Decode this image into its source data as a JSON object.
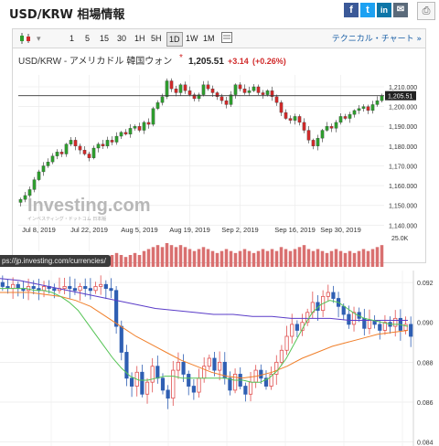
{
  "header": {
    "title": "USD/KRW 相場情報",
    "share": [
      "f",
      "t",
      "in",
      "✉"
    ],
    "print_icon": "printer-icon"
  },
  "toolbar": {
    "intervals": [
      "1",
      "5",
      "15",
      "30",
      "1H",
      "5H",
      "1D",
      "1W",
      "1M"
    ],
    "active": "1D",
    "tech_label": "テクニカル・チャート »"
  },
  "price_header": {
    "pair": "USD/KRW - アメリカドル 韓国ウォン",
    "asterisk": "*",
    "price": "1,205.51",
    "change": "+3.14",
    "change_pct": "(+0.26%)"
  },
  "watermark": {
    "brand": "Investing.com",
    "sub": "インベスティング・ドットコム 日本版"
  },
  "url_overlay": "ps://jp.investing.com/currencies/",
  "colors": {
    "up": "#2e9e2e",
    "down": "#d12a2a",
    "volume": "#d97070",
    "candle2_up": "#e05050",
    "candle2_down": "#2f5fb3",
    "ma_short": "#55c455",
    "ma_mid": "#f07f2a",
    "ma_long": "#5a3cc8"
  },
  "chart_data": [
    {
      "type": "candlestick",
      "title": "USD/KRW - アメリカドル 韓国ウォン",
      "x_ticks": [
        "Jul 8, 2019",
        "Jul 22, 2019",
        "Aug 5, 2019",
        "Aug 19, 2019",
        "Sep 2, 2019",
        "Sep 16, 2019",
        "Sep 30, 2019"
      ],
      "y_ticks": [
        1140,
        1150,
        1160,
        1170,
        1180,
        1190,
        1200,
        1210
      ],
      "ylim": [
        1136,
        1216
      ],
      "last_price": 1205.51,
      "volume_label": "25.0K",
      "closes": [
        1153,
        1155,
        1158,
        1163,
        1167,
        1170,
        1172,
        1175,
        1177,
        1176,
        1181,
        1183,
        1180,
        1178,
        1176,
        1174,
        1179,
        1181,
        1180,
        1183,
        1182,
        1185,
        1187,
        1186,
        1189,
        1190,
        1188,
        1192,
        1191,
        1199,
        1202,
        1205,
        1213,
        1209,
        1207,
        1211,
        1208,
        1206,
        1204,
        1206,
        1211,
        1209,
        1207,
        1205,
        1203,
        1201,
        1206,
        1211,
        1209,
        1207,
        1208,
        1210,
        1207,
        1206,
        1208,
        1205,
        1202,
        1197,
        1194,
        1193,
        1195,
        1192,
        1188,
        1183,
        1180,
        1184,
        1188,
        1190,
        1189,
        1192,
        1195,
        1194,
        1196,
        1198,
        1199,
        1200,
        1198,
        1201,
        1203,
        1205.51
      ],
      "volume": [
        3,
        4,
        5,
        4,
        6,
        5,
        5,
        6,
        5,
        4,
        6,
        5,
        5,
        4,
        6,
        5,
        6,
        5,
        4,
        5,
        6,
        7,
        6,
        5,
        6,
        7,
        6,
        8,
        9,
        10,
        11,
        10,
        12,
        11,
        10,
        11,
        10,
        9,
        8,
        9,
        10,
        9,
        8,
        7,
        8,
        9,
        8,
        7,
        8,
        9,
        8,
        7,
        8,
        9,
        8,
        9,
        8,
        10,
        9,
        8,
        9,
        10,
        11,
        9,
        8,
        9,
        8,
        7,
        8,
        9,
        8,
        7,
        8,
        7,
        8,
        9,
        8,
        9,
        10,
        11
      ]
    },
    {
      "type": "candlestick",
      "y_ticks": [
        0.084,
        0.086,
        0.088,
        0.09,
        0.092
      ],
      "ylim": [
        0.0838,
        0.0926
      ],
      "closes": [
        0.0918,
        0.0917,
        0.0919,
        0.0917,
        0.0916,
        0.0918,
        0.0917,
        0.0916,
        0.0918,
        0.0917,
        0.0916,
        0.0917,
        0.0918,
        0.0917,
        0.0916,
        0.0918,
        0.0917,
        0.0916,
        0.0918,
        0.0919,
        0.0917,
        0.0916,
        0.0898,
        0.0885,
        0.0872,
        0.0868,
        0.0875,
        0.0864,
        0.087,
        0.0878,
        0.0872,
        0.0866,
        0.0862,
        0.0876,
        0.088,
        0.0874,
        0.0868,
        0.0865,
        0.0872,
        0.0878,
        0.0882,
        0.0876,
        0.088,
        0.0872,
        0.0866,
        0.0874,
        0.0868,
        0.0864,
        0.087,
        0.0876,
        0.0872,
        0.0868,
        0.0874,
        0.088,
        0.0886,
        0.0893,
        0.0899,
        0.0896,
        0.09,
        0.0905,
        0.091,
        0.0906,
        0.0913,
        0.0915,
        0.0912,
        0.0908,
        0.0904,
        0.0899,
        0.0905,
        0.0902,
        0.0897,
        0.0901,
        0.0899,
        0.0896,
        0.09,
        0.0898,
        0.0902,
        0.0896,
        0.0899,
        0.0893
      ],
      "ma_short": [
        0.0917,
        0.0917,
        0.0917,
        0.0917,
        0.0916,
        0.0916,
        0.0915,
        0.0913,
        0.091,
        0.0906,
        0.09,
        0.0894,
        0.0888,
        0.0882,
        0.0877,
        0.0873,
        0.0871,
        0.0871,
        0.0872,
        0.0873,
        0.0873,
        0.0872,
        0.0872,
        0.0872,
        0.0872,
        0.0872,
        0.0872,
        0.0871,
        0.0871,
        0.087,
        0.087,
        0.0872,
        0.0876,
        0.0882,
        0.089,
        0.0898,
        0.0905,
        0.0909,
        0.0911,
        0.091,
        0.0907,
        0.0904,
        0.0902,
        0.0901,
        0.09,
        0.0899,
        0.0899,
        0.0898
      ],
      "ma_mid": [
        0.0915,
        0.0915,
        0.0915,
        0.0914,
        0.0913,
        0.0911,
        0.0908,
        0.0903,
        0.0898,
        0.0893,
        0.0889,
        0.0885,
        0.0881,
        0.0878,
        0.0875,
        0.0873,
        0.0872,
        0.0873,
        0.0875,
        0.0878,
        0.0882,
        0.0885,
        0.0888,
        0.089,
        0.0892,
        0.0894,
        0.0895,
        0.0896
      ],
      "ma_long": [
        0.0922,
        0.0921,
        0.0919,
        0.0917,
        0.0915,
        0.0913,
        0.0911,
        0.0909,
        0.0907,
        0.0906,
        0.0905,
        0.0904,
        0.0904,
        0.0903,
        0.0903,
        0.0902,
        0.0902,
        0.0902,
        0.0901,
        0.0901,
        0.0901,
        0.0901
      ]
    }
  ]
}
